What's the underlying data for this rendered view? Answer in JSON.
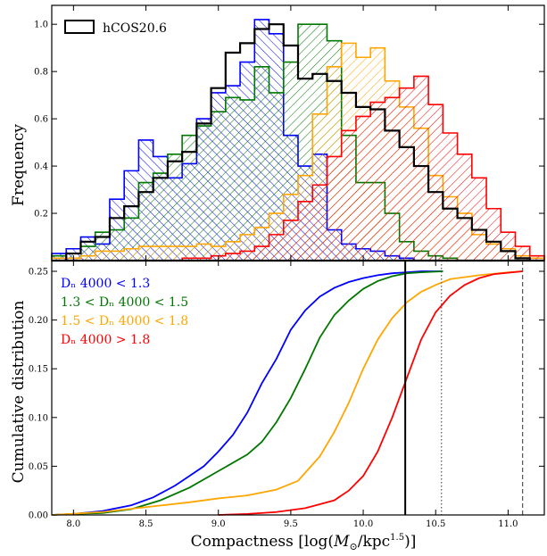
{
  "chart_data": [
    {
      "type": "histogram",
      "ylabel": "Frequency",
      "xlim": [
        7.85,
        11.25
      ],
      "ylim": [
        0,
        1.08
      ],
      "ytick_labels": [
        "0.2",
        "0.4",
        "0.6",
        "0.8",
        "1.0"
      ],
      "ytick_values": [
        0.2,
        0.4,
        0.6,
        0.8,
        1.0
      ],
      "bin_edges": [
        7.85,
        7.95,
        8.05,
        8.15,
        8.25,
        8.35,
        8.45,
        8.55,
        8.65,
        8.75,
        8.85,
        8.95,
        9.05,
        9.15,
        9.25,
        9.35,
        9.45,
        9.55,
        9.65,
        9.75,
        9.85,
        9.95,
        10.05,
        10.15,
        10.25,
        10.35,
        10.45,
        10.55,
        10.65,
        10.75,
        10.85,
        10.95,
        11.05,
        11.15,
        11.25
      ],
      "legend": [
        {
          "label": "hCOS20.6",
          "color": "#000000"
        }
      ],
      "series": [
        {
          "name": "",
          "color": "#0000ff",
          "hatch": true,
          "values": [
            0.03,
            0.05,
            0.1,
            0.07,
            0.26,
            0.38,
            0.51,
            0.44,
            0.35,
            0.41,
            0.6,
            0.71,
            0.74,
            0.84,
            1.02,
            0.96,
            0.53,
            0.4,
            0.45,
            0.13,
            0.07,
            0.05,
            0.04,
            0.02,
            0.01,
            0.0,
            0.0,
            0.0,
            0.0,
            0.0,
            0.0,
            0.0,
            0.0,
            0.0
          ]
        },
        {
          "name": "",
          "color": "#007700",
          "hatch": true,
          "values": [
            0.02,
            0.03,
            0.06,
            0.12,
            0.13,
            0.18,
            0.33,
            0.37,
            0.45,
            0.53,
            0.57,
            0.63,
            0.69,
            0.68,
            0.82,
            0.71,
            0.84,
            1.0,
            1.0,
            0.93,
            0.53,
            0.33,
            0.33,
            0.2,
            0.08,
            0.04,
            0.02,
            0.01,
            0.0,
            0.0,
            0.0,
            0.0,
            0.0,
            0.0
          ]
        },
        {
          "name": "",
          "color": "#ffa500",
          "hatch": true,
          "values": [
            0.01,
            0.01,
            0.02,
            0.04,
            0.04,
            0.05,
            0.06,
            0.06,
            0.06,
            0.06,
            0.07,
            0.06,
            0.08,
            0.11,
            0.14,
            0.2,
            0.28,
            0.36,
            0.62,
            0.82,
            0.92,
            0.86,
            0.9,
            0.76,
            0.65,
            0.56,
            0.36,
            0.27,
            0.2,
            0.11,
            0.07,
            0.05,
            0.02,
            0.01
          ]
        },
        {
          "name": "",
          "color": "#ff0000",
          "hatch": true,
          "values": [
            0.0,
            0.0,
            0.0,
            0.0,
            0.0,
            0.0,
            0.0,
            0.0,
            0.0,
            0.01,
            0.01,
            0.02,
            0.03,
            0.04,
            0.06,
            0.11,
            0.17,
            0.25,
            0.32,
            0.44,
            0.55,
            0.61,
            0.67,
            0.69,
            0.73,
            0.78,
            0.66,
            0.54,
            0.45,
            0.35,
            0.22,
            0.12,
            0.06,
            0.02
          ]
        },
        {
          "name": "hCOS20.6",
          "color": "#000000",
          "hatch": false,
          "values": [
            0.0,
            0.03,
            0.08,
            0.1,
            0.18,
            0.23,
            0.29,
            0.35,
            0.42,
            0.46,
            0.58,
            0.73,
            0.88,
            0.92,
            0.98,
            1.0,
            0.91,
            0.77,
            0.79,
            0.76,
            0.71,
            0.65,
            0.64,
            0.55,
            0.48,
            0.4,
            0.29,
            0.22,
            0.18,
            0.13,
            0.08,
            0.04,
            0.01,
            0.0
          ]
        }
      ]
    },
    {
      "type": "line",
      "xlabel_prefix": "Compactness [log(",
      "xlabel_M": "M",
      "xlabel_sun": "⊙",
      "xlabel_mid": "/kpc",
      "xlabel_exp": "1.5",
      "xlabel_suffix": ")]",
      "ylabel": "Cumulative distribution",
      "xlim": [
        7.85,
        11.25
      ],
      "ylim": [
        0,
        0.25
      ],
      "xtick_labels": [
        "8.0",
        "8.5",
        "9.0",
        "9.5",
        "10.0",
        "10.5",
        "11.0"
      ],
      "xtick_values": [
        8.0,
        8.5,
        9.0,
        9.5,
        10.0,
        10.5,
        11.0
      ],
      "ytick_labels": [
        "0.00",
        "0.05",
        "0.10",
        "0.15",
        "0.20",
        "0.25"
      ],
      "ytick_values": [
        0.0,
        0.05,
        0.1,
        0.15,
        0.2,
        0.25
      ],
      "legend": [
        {
          "label": "Dₙ 4000 < 1.3",
          "color": "#0000ff"
        },
        {
          "label": "1.3 < Dₙ 4000 < 1.5",
          "color": "#007700"
        },
        {
          "label": "1.5 < Dₙ 4000 < 1.8",
          "color": "#ffa500"
        },
        {
          "label": "Dₙ 4000 > 1.8",
          "color": "#ff0000"
        }
      ],
      "series": [
        {
          "name": "Dₙ 4000 < 1.3",
          "color": "#0000ff",
          "x": [
            7.85,
            8.0,
            8.2,
            8.4,
            8.55,
            8.7,
            8.8,
            8.9,
            9.0,
            9.1,
            9.2,
            9.3,
            9.4,
            9.5,
            9.6,
            9.7,
            9.8,
            9.9,
            10.0,
            10.1,
            10.2,
            10.3,
            10.4,
            10.55
          ],
          "y": [
            0.0,
            0.001,
            0.004,
            0.01,
            0.018,
            0.03,
            0.04,
            0.05,
            0.065,
            0.082,
            0.105,
            0.135,
            0.16,
            0.19,
            0.21,
            0.224,
            0.233,
            0.239,
            0.243,
            0.246,
            0.248,
            0.249,
            0.25,
            0.25
          ]
        },
        {
          "name": "1.3 < Dₙ 4000 < 1.5",
          "color": "#007700",
          "x": [
            7.85,
            8.0,
            8.2,
            8.4,
            8.6,
            8.8,
            9.0,
            9.2,
            9.3,
            9.4,
            9.5,
            9.6,
            9.7,
            9.8,
            9.9,
            10.0,
            10.1,
            10.2,
            10.3,
            10.4,
            10.55
          ],
          "y": [
            0.0,
            0.001,
            0.002,
            0.006,
            0.015,
            0.028,
            0.045,
            0.062,
            0.075,
            0.095,
            0.12,
            0.15,
            0.182,
            0.205,
            0.22,
            0.232,
            0.24,
            0.245,
            0.248,
            0.249,
            0.25
          ]
        },
        {
          "name": "1.5 < Dₙ 4000 < 1.8",
          "color": "#ffa500",
          "x": [
            7.85,
            8.2,
            8.5,
            8.8,
            9.0,
            9.2,
            9.4,
            9.55,
            9.7,
            9.8,
            9.9,
            10.0,
            10.1,
            10.2,
            10.3,
            10.4,
            10.5,
            10.6,
            10.8,
            11.0,
            11.1
          ],
          "y": [
            0.0,
            0.003,
            0.008,
            0.013,
            0.017,
            0.02,
            0.026,
            0.035,
            0.06,
            0.085,
            0.115,
            0.15,
            0.18,
            0.202,
            0.218,
            0.229,
            0.236,
            0.242,
            0.246,
            0.249,
            0.25
          ]
        },
        {
          "name": "Dₙ 4000 > 1.8",
          "color": "#ff0000",
          "x": [
            9.0,
            9.2,
            9.4,
            9.6,
            9.8,
            9.9,
            10.0,
            10.1,
            10.2,
            10.3,
            10.4,
            10.5,
            10.6,
            10.7,
            10.8,
            10.9,
            11.1
          ],
          "y": [
            0.0,
            0.001,
            0.003,
            0.007,
            0.015,
            0.025,
            0.04,
            0.065,
            0.1,
            0.14,
            0.18,
            0.208,
            0.225,
            0.236,
            0.243,
            0.247,
            0.25
          ]
        }
      ],
      "vlines": [
        {
          "x": 10.29,
          "style": "solid",
          "color": "#000000"
        },
        {
          "x": 10.54,
          "style": "dotted",
          "color": "#555555"
        },
        {
          "x": 11.1,
          "style": "dashed",
          "color": "#555555"
        }
      ]
    }
  ]
}
